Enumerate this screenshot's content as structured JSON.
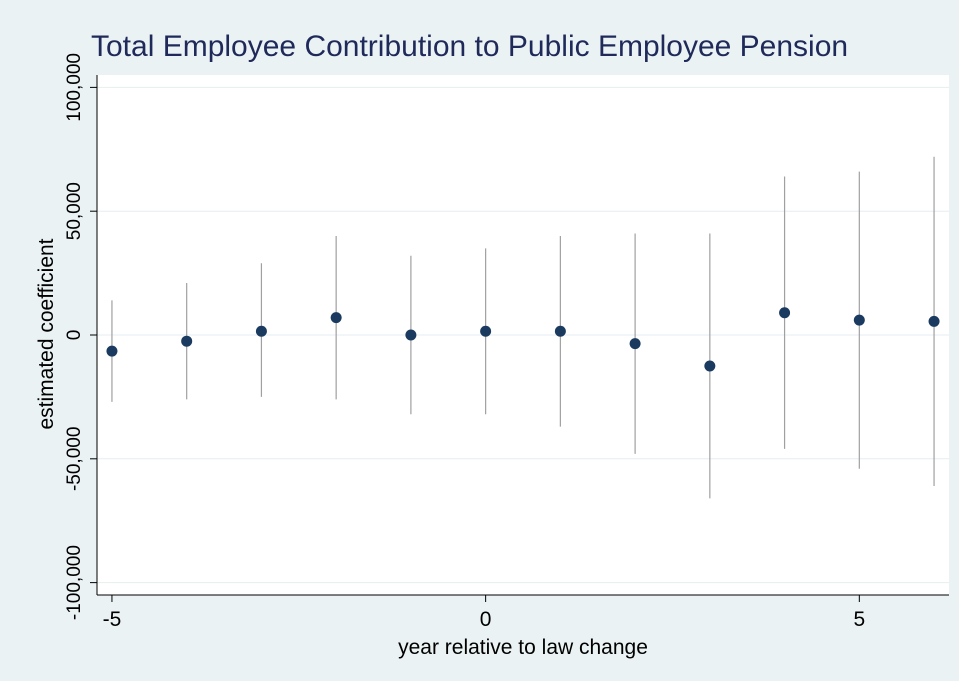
{
  "chart_data": {
    "type": "scatter",
    "title": "Total Employee Contribution to Public Employee Pension",
    "xlabel": "year relative to law change",
    "ylabel": "estimated coefficient",
    "x_ticks": [
      -5,
      0,
      5
    ],
    "x_tick_labels": [
      "-5",
      "0",
      "5"
    ],
    "y_ticks": [
      -100000,
      -50000,
      0,
      50000,
      100000
    ],
    "y_tick_labels": [
      "-100,000",
      "-50,000",
      "0",
      "50,000",
      "100,000"
    ],
    "xlim": [
      -5.2,
      6.2
    ],
    "ylim": [
      -105000,
      105000
    ],
    "grid": true,
    "legend": "none",
    "colors": {
      "background": "#eaf2f3",
      "plot_area": "#ffffff",
      "marker": "#1a3a5f",
      "ci_line": "#a0a0a0",
      "title": "#1f2a5a",
      "grid": "#e6eef0",
      "axis": "#000000"
    },
    "series": [
      {
        "x": [
          -5,
          -4,
          -3,
          -2,
          -1,
          0,
          1,
          2,
          3,
          4,
          5,
          6
        ],
        "y": [
          -6500,
          -2500,
          1500,
          7000,
          0,
          1500,
          1500,
          -3500,
          -12500,
          9000,
          6000,
          5500
        ],
        "ci_low": [
          -27000,
          -26000,
          -25000,
          -26000,
          -32000,
          -32000,
          -37000,
          -48000,
          -66000,
          -46000,
          -54000,
          -61000
        ],
        "ci_high": [
          14000,
          21000,
          29000,
          40000,
          32000,
          35000,
          40000,
          41000,
          41000,
          64000,
          66000,
          72000
        ]
      }
    ]
  }
}
